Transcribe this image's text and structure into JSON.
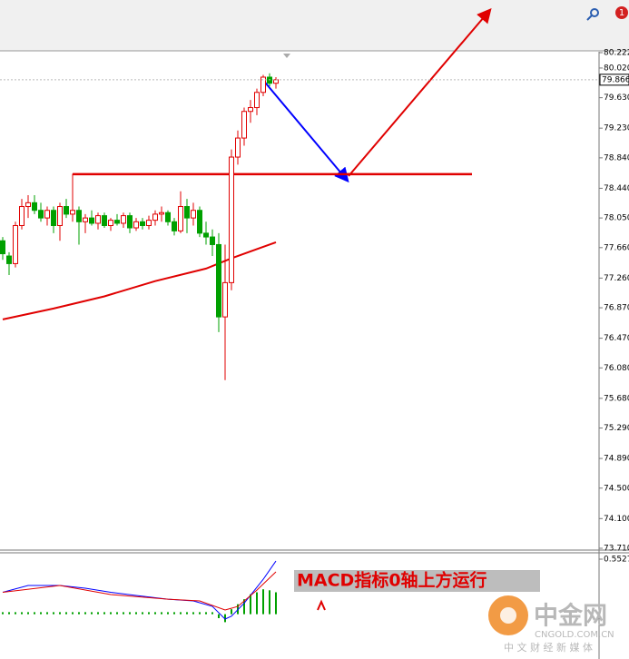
{
  "toolbar": {
    "badge": "1"
  },
  "watermark": {
    "brand": "中金网",
    "domain": "CNGOLD.COM.CN",
    "tagline": "中 文 财 经 新 媒 体"
  },
  "chart_data": [
    {
      "type": "candlestick",
      "up_color": "#e00000",
      "down_color": "#00a000",
      "ylim": [
        73.71,
        80.222
      ],
      "yticks": [
        {
          "value": 80.222,
          "label": "80.222"
        },
        {
          "value": 80.02,
          "label": "80.020"
        },
        {
          "value": 79.63,
          "label": "79.630"
        },
        {
          "value": 79.23,
          "label": "79.230"
        },
        {
          "value": 78.84,
          "label": "78.840"
        },
        {
          "value": 78.44,
          "label": "78.440"
        },
        {
          "value": 78.05,
          "label": "78.050"
        },
        {
          "value": 77.66,
          "label": "77.660"
        },
        {
          "value": 77.26,
          "label": "77.260"
        },
        {
          "value": 76.87,
          "label": "76.870"
        },
        {
          "value": 76.47,
          "label": "76.470"
        },
        {
          "value": 76.08,
          "label": "76.080"
        },
        {
          "value": 75.68,
          "label": "75.680"
        },
        {
          "value": 75.29,
          "label": "75.290"
        },
        {
          "value": 74.89,
          "label": "74.890"
        },
        {
          "value": 74.5,
          "label": "74.500"
        },
        {
          "value": 74.1,
          "label": "74.100"
        },
        {
          "value": 73.71,
          "label": "73.710"
        }
      ],
      "last": 79.866,
      "open": [
        77.75,
        77.55,
        77.45,
        77.95,
        78.2,
        78.25,
        78.15,
        78.05,
        78.15,
        77.95,
        78.2,
        78.1,
        78.15,
        78.0,
        78.05,
        77.98,
        78.08,
        77.95,
        78.02,
        77.98,
        78.08,
        77.92,
        78.0,
        77.95,
        78.02,
        78.1,
        78.12,
        78.0,
        77.88,
        78.2,
        78.05,
        78.15,
        77.85,
        77.8,
        77.7,
        76.75,
        77.2,
        78.85,
        79.1,
        79.45,
        79.5,
        79.7,
        79.9,
        79.82
      ],
      "high": [
        77.8,
        77.6,
        78.0,
        78.3,
        78.35,
        78.35,
        78.25,
        78.2,
        78.2,
        78.25,
        78.3,
        78.63,
        78.2,
        78.1,
        78.15,
        78.12,
        78.12,
        78.05,
        78.1,
        78.12,
        78.12,
        78.05,
        78.05,
        78.08,
        78.15,
        78.2,
        78.15,
        78.05,
        78.4,
        78.3,
        78.25,
        78.2,
        78.0,
        77.9,
        77.85,
        77.7,
        78.95,
        79.2,
        79.5,
        79.6,
        79.75,
        79.93,
        79.95,
        79.9
      ],
      "low": [
        77.5,
        77.3,
        77.4,
        77.9,
        78.05,
        78.1,
        78.0,
        77.95,
        77.85,
        77.75,
        78.05,
        78.0,
        77.7,
        77.85,
        77.95,
        77.9,
        77.92,
        77.88,
        77.95,
        77.92,
        77.85,
        77.88,
        77.9,
        77.9,
        77.95,
        78.0,
        77.95,
        77.82,
        77.85,
        77.85,
        77.95,
        77.8,
        77.7,
        77.55,
        76.55,
        75.92,
        77.1,
        78.75,
        79.0,
        79.3,
        79.4,
        79.65,
        79.78,
        79.75
      ],
      "close": [
        77.58,
        77.45,
        77.95,
        78.2,
        78.25,
        78.15,
        78.05,
        78.15,
        77.95,
        78.2,
        78.1,
        78.15,
        78.0,
        78.05,
        77.98,
        78.08,
        77.95,
        78.02,
        77.98,
        78.08,
        77.92,
        78.0,
        77.95,
        78.02,
        78.1,
        78.12,
        78.0,
        77.88,
        78.2,
        78.05,
        78.15,
        77.85,
        77.8,
        77.7,
        76.75,
        77.2,
        78.85,
        79.1,
        79.45,
        79.5,
        79.7,
        79.9,
        79.82,
        79.866
      ],
      "ma": {
        "color": "#e00000",
        "x": [
          0,
          8,
          16,
          24,
          32,
          36,
          40,
          43
        ],
        "values": [
          76.717,
          76.86,
          77.02,
          77.22,
          77.385,
          77.52,
          77.64,
          77.73
        ]
      },
      "level": {
        "value": 78.626,
        "color": "#e00000"
      }
    },
    {
      "type": "macd",
      "ylim": [
        -0.45,
        0.5527
      ],
      "yticks": [
        0.5527
      ],
      "histogram_color": "#00a000",
      "histogram": [
        0.02,
        0.02,
        0.02,
        0.02,
        0.02,
        0.02,
        0.02,
        0.02,
        0.02,
        0.02,
        0.02,
        0.02,
        0.02,
        0.02,
        0.02,
        0.02,
        0.02,
        0.02,
        0.02,
        0.02,
        0.02,
        0.02,
        0.02,
        0.02,
        0.02,
        0.02,
        0.02,
        0.02,
        0.02,
        0.02,
        0.02,
        0.02,
        0.02,
        0.02,
        -0.04,
        -0.08,
        0.05,
        0.1,
        0.15,
        0.2,
        0.22,
        0.25,
        0.24,
        0.22
      ],
      "lines": [
        {
          "color": "#0000ff",
          "x": [
            0,
            4,
            9,
            13,
            17,
            21,
            26,
            30,
            33,
            35,
            36,
            38,
            41,
            43
          ],
          "values": [
            0.22,
            0.288,
            0.288,
            0.261,
            0.22,
            0.188,
            0.151,
            0.133,
            0.078,
            -0.049,
            -0.02,
            0.11,
            0.35,
            0.534
          ]
        },
        {
          "color": "#e00000",
          "x": [
            0,
            9,
            17,
            26,
            31,
            35,
            37,
            40,
            43
          ],
          "values": [
            0.22,
            0.288,
            0.197,
            0.151,
            0.133,
            0.042,
            0.078,
            0.242,
            0.425
          ]
        }
      ],
      "annotation": "MACD指标0轴上方运行"
    }
  ]
}
